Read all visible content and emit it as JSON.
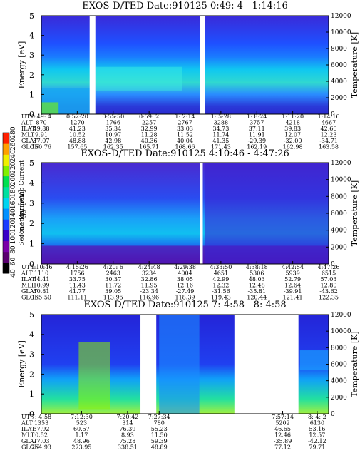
{
  "colorbar": {
    "label": "Second Harmonic Current",
    "ticks": [
      "40",
      "60",
      "80",
      "100",
      "120",
      "140",
      "160",
      "180",
      "200",
      "220",
      "240",
      "260",
      "280"
    ],
    "colors": [
      "#000000",
      "#5a0070",
      "#7a00a8",
      "#3a00c8",
      "#1a3cff",
      "#0090ff",
      "#00d4f0",
      "#00e0a0",
      "#00e050",
      "#80f000",
      "#f0f000",
      "#ffa000",
      "#ff2000"
    ]
  },
  "row_labels": [
    "UT",
    "ALT",
    "ILAT",
    "MLT",
    "GLAT",
    "GLON"
  ],
  "chart_data": [
    {
      "type": "heatmap",
      "title": "EXOS-D/TED   Date:910125   0:49: 4 - 1:14:16",
      "ylabel": "Energy [eV]",
      "y2label": "Temperature [K]",
      "ylim": [
        0,
        5
      ],
      "y2lim": [
        0,
        12000
      ],
      "yticks": [
        "0",
        "1",
        "2",
        "3",
        "4",
        "5"
      ],
      "y2ticks": [
        "0",
        "2000",
        "4000",
        "6000",
        "8000",
        "10000",
        "12000"
      ],
      "data_gaps": [
        [
          0.168,
          0.188
        ],
        [
          0.553,
          0.569
        ]
      ],
      "table": [
        [
          "0:49: 4",
          "0:52:20",
          "0:55:50",
          "0:59: 2",
          "1: 2:14",
          "1: 5:28",
          "1: 8:24",
          "1:11:20",
          "1:14:16"
        ],
        [
          "870",
          "1270",
          "1766",
          "2257",
          "2767",
          "3288",
          "3757",
          "4218",
          "4667"
        ],
        [
          "49.88",
          "41.23",
          "35.34",
          "32.99",
          "33.03",
          "34.73",
          "37.11",
          "39.83",
          "42.66"
        ],
        [
          "9.91",
          "10.52",
          "10.97",
          "11.28",
          "11.52",
          "11.74",
          "11.91",
          "12.07",
          "12.23"
        ],
        [
          "57.07",
          "48.88",
          "42.98",
          "40.36",
          "40.04",
          "41.35",
          "-29.39",
          "-32.00",
          "-34.71"
        ],
        [
          "150.76",
          "157.65",
          "162.35",
          "165.71",
          "168.66",
          "171.43",
          "162.19",
          "162.98",
          "163.58"
        ]
      ]
    },
    {
      "type": "heatmap",
      "title": "EXOS-D/TED   Date:910125   4:10:46 - 4:47:26",
      "ylabel": "Energy [eV]",
      "y2label": "Temperature [K]",
      "ylim": [
        0,
        5
      ],
      "y2lim": [
        0,
        12000
      ],
      "yticks": [
        "0",
        "1",
        "2",
        "3",
        "4",
        "5"
      ],
      "y2ticks": [
        "0",
        "2000",
        "4000",
        "6000",
        "8000",
        "10000",
        "12000"
      ],
      "data_gaps": [
        [
          0.552,
          0.562
        ]
      ],
      "table": [
        [
          "4:10:46",
          "4:15:26",
          "4:20: 6",
          "4:24:48",
          "4:29:38",
          "4:33:50",
          "4:38:18",
          "4:42:54",
          "4:47:26"
        ],
        [
          "1110",
          "1756",
          "2463",
          "3234",
          "4004",
          "4651",
          "5306",
          "5939",
          "6515"
        ],
        [
          "44.41",
          "33.75",
          "30.37",
          "32.86",
          "38.05",
          "42.99",
          "48.03",
          "52.79",
          "57.03"
        ],
        [
          "10.99",
          "11.43",
          "11.72",
          "11.95",
          "12.16",
          "12.32",
          "12.48",
          "12.64",
          "12.80"
        ],
        [
          "50.81",
          "41.77",
          "39.05",
          "-23.34",
          "-27.49",
          "-31.56",
          "-35.81",
          "-39.91",
          "-43.62"
        ],
        [
          "105.50",
          "111.11",
          "113.95",
          "116.96",
          "118.39",
          "119.43",
          "120.44",
          "121.41",
          "122.35"
        ]
      ]
    },
    {
      "type": "heatmap",
      "title": "EXOS-D/TED   Date:910125   7: 4:58 - 8: 4:58",
      "ylabel": "Energy [eV]",
      "y2label": "Temperature [K]",
      "ylim": [
        0,
        5
      ],
      "y2lim": [
        0,
        12000
      ],
      "yticks": [
        "0",
        "1",
        "2",
        "3",
        "4",
        "5"
      ],
      "y2ticks": [
        "0",
        "2000",
        "4000",
        "6000",
        "8000",
        "10000",
        "12000"
      ],
      "data_gaps": [
        [
          0.345,
          0.4
        ],
        [
          0.672,
          0.895
        ]
      ],
      "table": [
        [
          "7: 4:58",
          "7:12:30",
          "7:20:42",
          "7:27:34",
          "7:57:14",
          "8: 4: 2"
        ],
        [
          "1353",
          "523",
          "314",
          "780",
          "5202",
          "6130"
        ],
        [
          "37.92",
          "60.57",
          "76.39",
          "55.23",
          "46.65",
          "53.16"
        ],
        [
          "0.52",
          "1.17",
          "8.93",
          "11.50",
          "12.46",
          "12.57"
        ],
        [
          "27.03",
          "48.96",
          "75.28",
          "59.39",
          "-35.89",
          "-42.12"
        ],
        [
          "264.93",
          "273.95",
          "338.51",
          "48.89",
          "77.12",
          "79.71"
        ]
      ]
    }
  ]
}
